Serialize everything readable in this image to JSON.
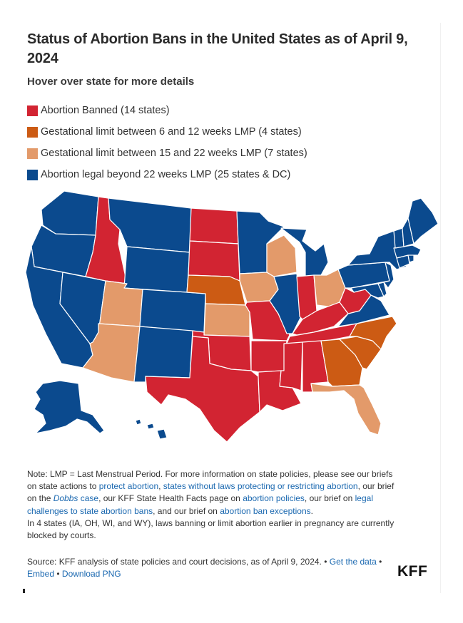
{
  "title": "Status of Abortion Bans in the United States as of April 9, 2024",
  "subtitle": "Hover over state for more details",
  "colors": {
    "banned": "#d22432",
    "limit_6_12": "#cc5b14",
    "limit_15_22": "#e39a6a",
    "legal": "#0b4a8e"
  },
  "legend": [
    {
      "key": "banned",
      "label": "Abortion Banned (14 states)"
    },
    {
      "key": "limit_6_12",
      "label": "Gestational limit between 6 and 12 weeks LMP (4 states)"
    },
    {
      "key": "limit_15_22",
      "label": "Gestational limit between 15 and 22 weeks LMP (7 states)"
    },
    {
      "key": "legal",
      "label": "Abortion legal beyond 22 weeks LMP (25 states & DC)"
    }
  ],
  "states": {
    "WA": "legal",
    "OR": "legal",
    "CA": "legal",
    "NV": "legal",
    "ID": "banned",
    "MT": "legal",
    "WY": "legal",
    "UT": "limit_15_22",
    "AZ": "limit_15_22",
    "CO": "legal",
    "NM": "legal",
    "ND": "banned",
    "SD": "banned",
    "NE": "limit_6_12",
    "KS": "limit_15_22",
    "OK": "banned",
    "TX": "banned",
    "MN": "legal",
    "IA": "limit_15_22",
    "MO": "banned",
    "AR": "banned",
    "LA": "banned",
    "WI": "limit_15_22",
    "IL": "legal",
    "MI": "legal",
    "IN": "banned",
    "OH": "limit_15_22",
    "KY": "banned",
    "TN": "banned",
    "MS": "banned",
    "AL": "banned",
    "GA": "limit_6_12",
    "FL": "limit_15_22",
    "SC": "limit_6_12",
    "NC": "limit_6_12",
    "VA": "legal",
    "WV": "banned",
    "PA": "legal",
    "NY": "legal",
    "ME": "legal",
    "NH": "legal",
    "VT": "legal",
    "MA": "legal",
    "NJ": "legal",
    "MD": "legal",
    "DE": "legal",
    "CT": "legal",
    "RI": "legal",
    "AK": "legal",
    "HI": "legal"
  },
  "notes": {
    "p1_a": "Note: LMP = Last Menstrual Period. For more information on state policies, please see our briefs on state actions to ",
    "link_protect": "protect abortion",
    "sep1": ", ",
    "link_states_without": "states without laws protecting or restricting abortion",
    "p1_b": ", our brief on the ",
    "link_dobbs_italic": "Dobbs",
    "link_dobbs_rest": " case",
    "p1_c": ", our KFF State Health Facts page on ",
    "link_policies": "abortion policies",
    "p1_d": ", our brief on ",
    "link_challenges": "legal challenges to state abortion bans",
    "p1_e": ", and our brief on ",
    "link_exceptions": "abortion ban exceptions",
    "p1_f": ".",
    "p2": "In 4 states (IA, OH, WI, and WY), laws banning or limit abortion earlier in pregnancy are currently blocked by courts."
  },
  "source": {
    "text": "Source: KFF analysis of state policies and court decisions, as of April 9, 2024. •",
    "get_data": "Get the data",
    "bullet1": "•",
    "embed": "Embed",
    "bullet2": "•",
    "download": "Download PNG"
  },
  "logo": "KFF"
}
